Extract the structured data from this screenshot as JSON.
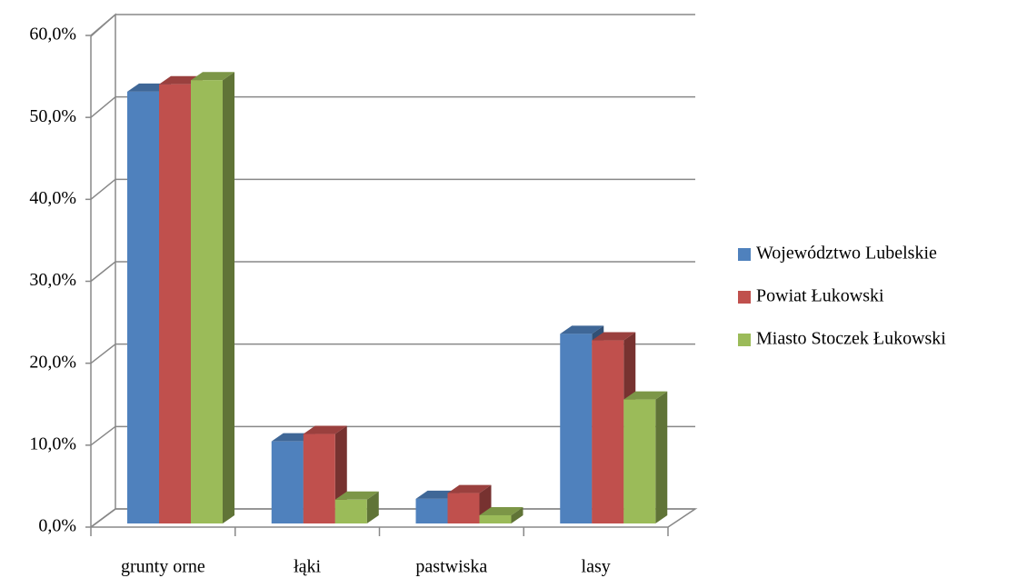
{
  "chart_data": {
    "type": "bar",
    "categories": [
      "grunty orne",
      "łąki",
      "pastwiska",
      "lasy"
    ],
    "series": [
      {
        "name": "Województwo Lubelskie",
        "color": "#4f81bd",
        "values": [
          52.6,
          10.0,
          3.0,
          23.1
        ]
      },
      {
        "name": "Powiat Łukowski",
        "color": "#c0504d",
        "values": [
          53.5,
          10.9,
          3.7,
          22.3
        ]
      },
      {
        "name": "Miasto Stoczek Łukowski",
        "color": "#9bbb59",
        "values": [
          54.0,
          2.9,
          1.0,
          15.1
        ]
      }
    ],
    "ylim": [
      0,
      60
    ],
    "yticks": [
      {
        "value": 0,
        "label": "0,0%"
      },
      {
        "value": 10,
        "label": "10,0%"
      },
      {
        "value": 20,
        "label": "20,0%"
      },
      {
        "value": 30,
        "label": "30,0%"
      },
      {
        "value": 40,
        "label": "40,0%"
      },
      {
        "value": 50,
        "label": "50,0%"
      },
      {
        "value": 60,
        "label": "60,0%"
      }
    ],
    "grid": true,
    "legend": "right"
  }
}
